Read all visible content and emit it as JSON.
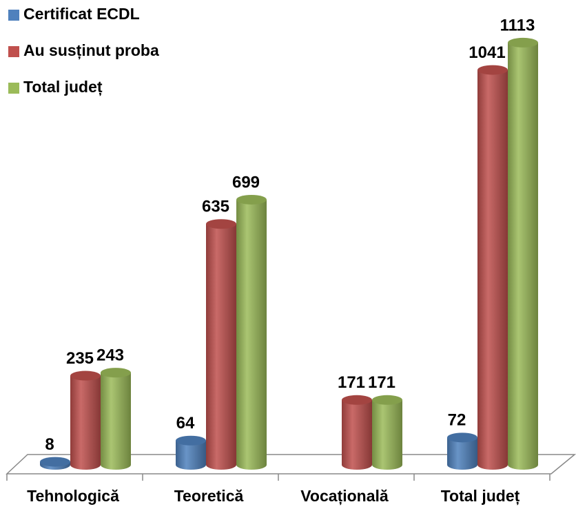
{
  "chart_data": {
    "type": "bar3d",
    "categories": [
      "Tehnologică",
      "Teoretică",
      "Vocațională",
      "Total județ"
    ],
    "series": [
      {
        "name": "Certificat ECDL",
        "color": "#4f81bd",
        "values": [
          8,
          64,
          null,
          72
        ]
      },
      {
        "name": "Au susținut proba",
        "color": "#c0504d",
        "values": [
          235,
          635,
          171,
          1041
        ]
      },
      {
        "name": "Total județ",
        "color": "#9bbb59",
        "values": [
          243,
          699,
          171,
          1113
        ]
      }
    ],
    "ylim": [
      0,
      1200
    ],
    "legend": "top-left"
  }
}
